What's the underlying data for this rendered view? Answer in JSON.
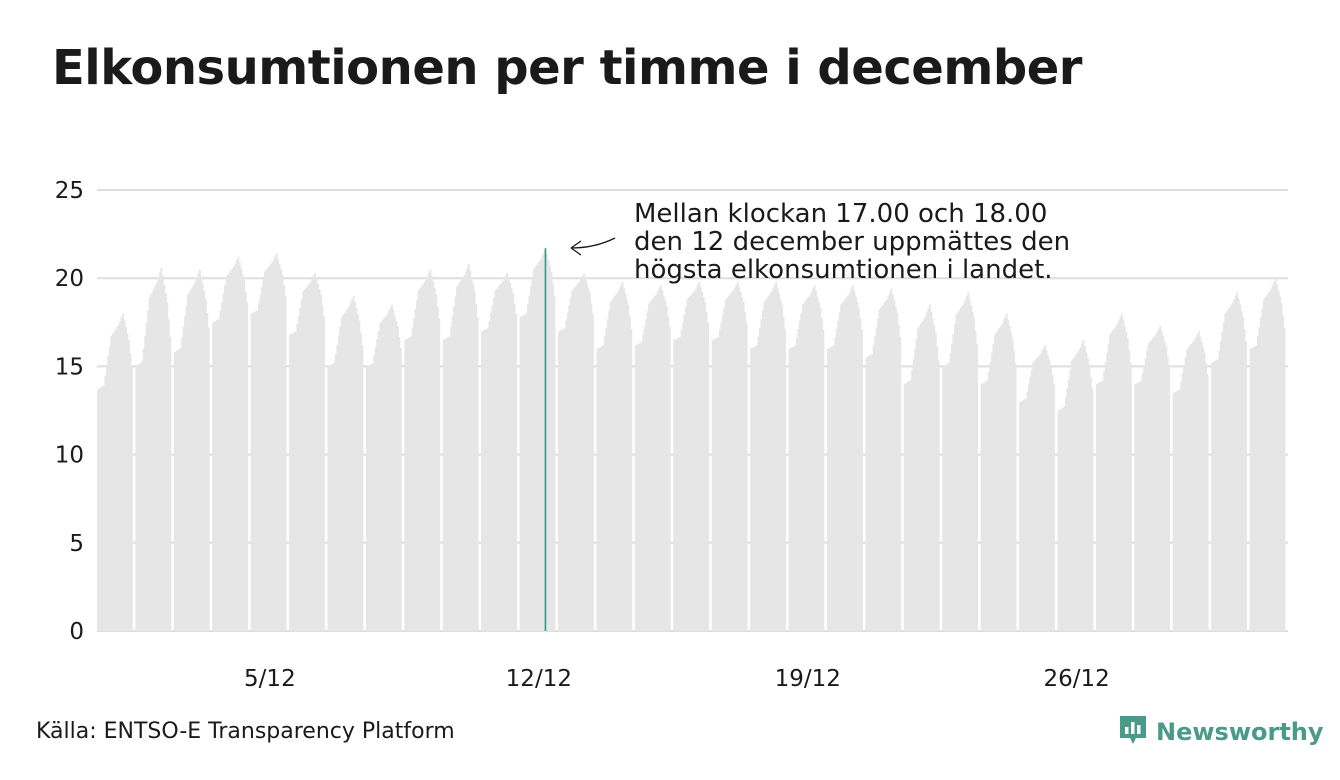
{
  "title": "Elkonsumtionen per timme i december",
  "source": "Källa: ENTSO-E Transparency Platform",
  "brand": "Newsworthy",
  "colors": {
    "bars": "#e6e6e6",
    "highlight": "#2a9d8f",
    "grid": "#dedede",
    "text": "#1a1a1a",
    "brand": "#4a9a8a"
  },
  "icons": {
    "brand_logo": "bar-chart-speech-bubble-icon",
    "annotation_arrow": "curved-arrow-icon"
  },
  "chart_data": {
    "type": "bar",
    "unit_note": "",
    "xlabel": "",
    "ylabel": "",
    "ylim": [
      0,
      25
    ],
    "yticks": [
      0,
      5,
      10,
      15,
      20,
      25
    ],
    "x_range_days": [
      1,
      31
    ],
    "xtick_labels": [
      {
        "day": 5,
        "label": "5/12"
      },
      {
        "day": 12,
        "label": "12/12"
      },
      {
        "day": 19,
        "label": "19/12"
      },
      {
        "day": 26,
        "label": "26/12"
      }
    ],
    "grid": true,
    "annotation": {
      "lines": [
        "Mellan klockan 17.00 och 18.00",
        "den 12 december uppmättes den",
        "högsta elkonsumtionen i landet."
      ],
      "day": 12,
      "hour": 17,
      "value": 21.7
    },
    "daily_profile": [
      {
        "date": "1/12",
        "min": 13.7,
        "max": 18.0
      },
      {
        "date": "2/12",
        "min": 15.0,
        "max": 20.6
      },
      {
        "date": "3/12",
        "min": 15.8,
        "max": 20.5
      },
      {
        "date": "4/12",
        "min": 17.5,
        "max": 21.2
      },
      {
        "date": "5/12",
        "min": 18.0,
        "max": 21.4
      },
      {
        "date": "6/12",
        "min": 16.8,
        "max": 20.3
      },
      {
        "date": "7/12",
        "min": 15.0,
        "max": 19.0
      },
      {
        "date": "8/12",
        "min": 15.0,
        "max": 18.5
      },
      {
        "date": "9/12",
        "min": 16.5,
        "max": 20.5
      },
      {
        "date": "10/12",
        "min": 16.5,
        "max": 20.8
      },
      {
        "date": "11/12",
        "min": 17.0,
        "max": 20.3
      },
      {
        "date": "12/12",
        "min": 17.8,
        "max": 21.7
      },
      {
        "date": "13/12",
        "min": 17.0,
        "max": 20.3
      },
      {
        "date": "14/12",
        "min": 16.0,
        "max": 19.8
      },
      {
        "date": "15/12",
        "min": 16.2,
        "max": 19.6
      },
      {
        "date": "16/12",
        "min": 16.5,
        "max": 19.8
      },
      {
        "date": "17/12",
        "min": 16.5,
        "max": 19.8
      },
      {
        "date": "18/12",
        "min": 16.0,
        "max": 19.8
      },
      {
        "date": "19/12",
        "min": 16.0,
        "max": 19.6
      },
      {
        "date": "20/12",
        "min": 16.0,
        "max": 19.6
      },
      {
        "date": "21/12",
        "min": 15.5,
        "max": 19.4
      },
      {
        "date": "22/12",
        "min": 14.0,
        "max": 18.5
      },
      {
        "date": "23/12",
        "min": 15.0,
        "max": 19.2
      },
      {
        "date": "24/12",
        "min": 14.0,
        "max": 18.0
      },
      {
        "date": "25/12",
        "min": 13.0,
        "max": 16.2
      },
      {
        "date": "26/12",
        "min": 12.5,
        "max": 16.5
      },
      {
        "date": "27/12",
        "min": 14.0,
        "max": 18.0
      },
      {
        "date": "28/12",
        "min": 14.0,
        "max": 17.3
      },
      {
        "date": "29/12",
        "min": 13.5,
        "max": 17.0
      },
      {
        "date": "30/12",
        "min": 15.2,
        "max": 19.2
      },
      {
        "date": "31/12",
        "min": 16.0,
        "max": 20.0
      }
    ]
  }
}
